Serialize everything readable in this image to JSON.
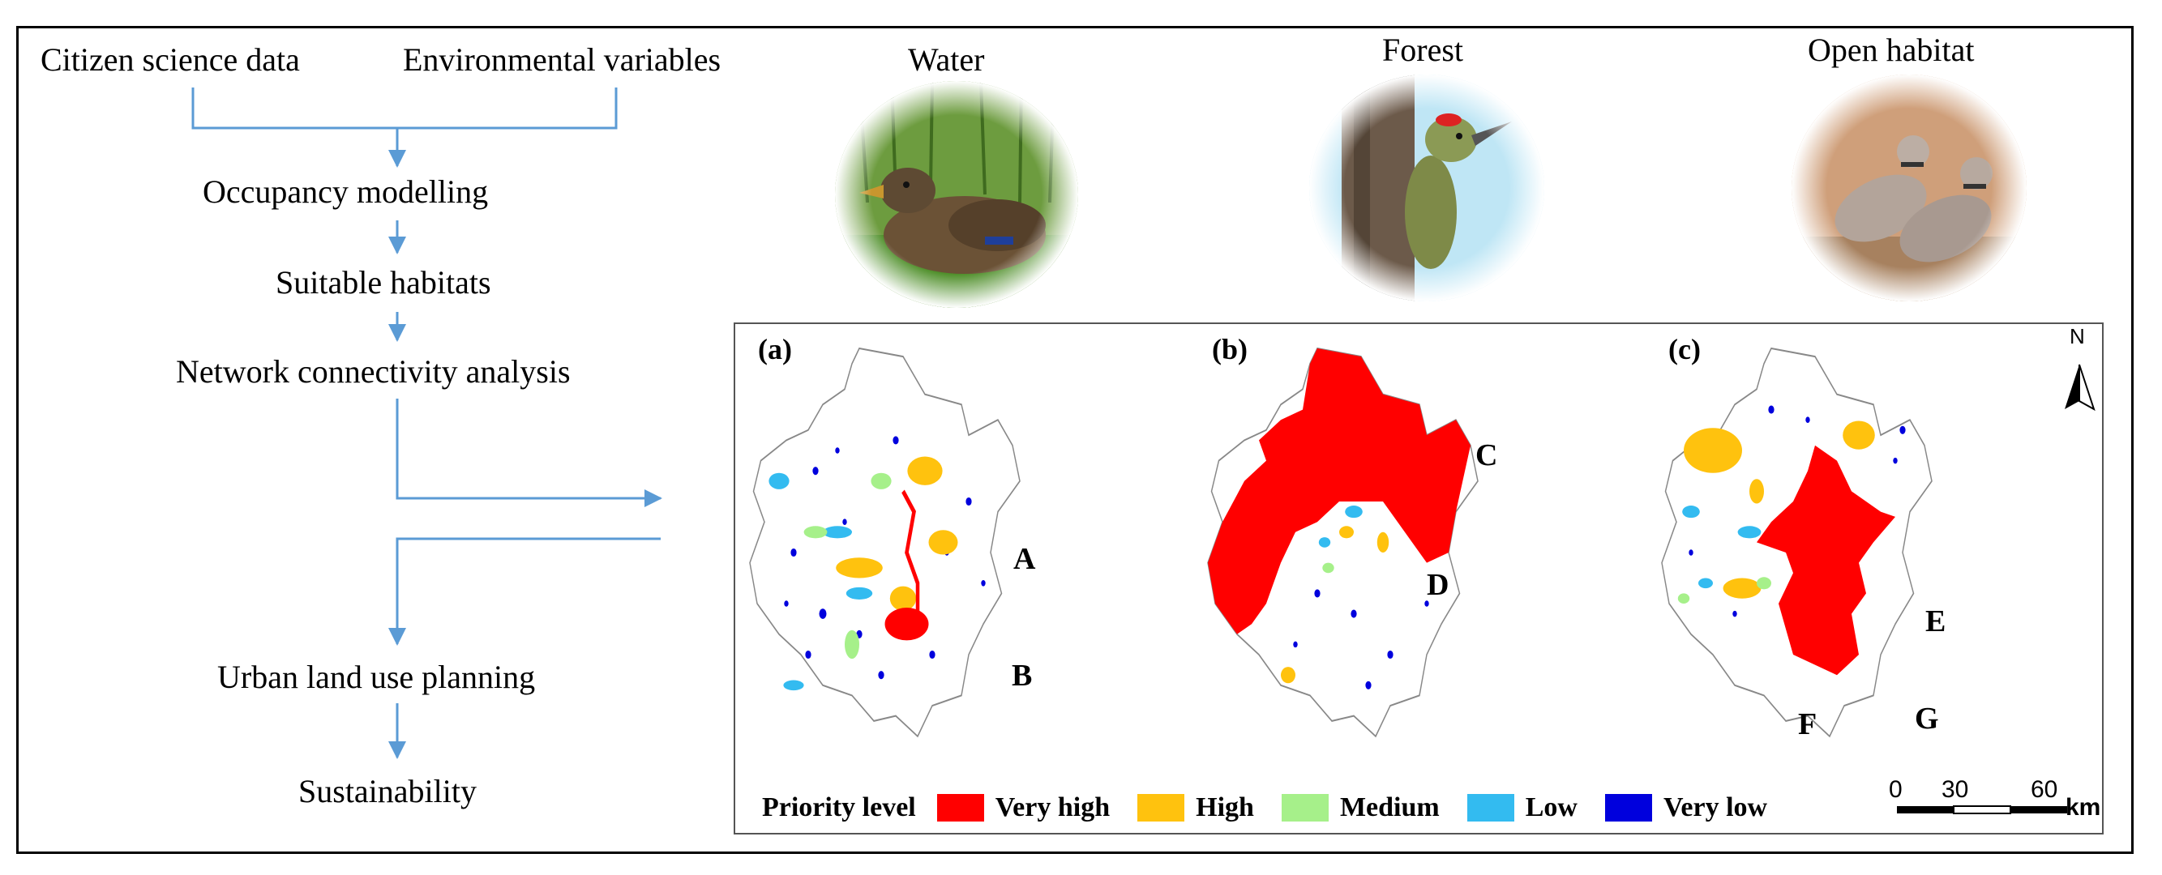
{
  "flow": {
    "source_left": "Citizen science data",
    "source_right": "Environmental variables",
    "steps": [
      "Occupancy modelling",
      "Suitable habitats",
      "Network connectivity analysis"
    ],
    "outcomes": [
      "Urban land use planning",
      "Sustainability"
    ]
  },
  "photos": [
    {
      "label": "Water",
      "icon": "duck-photo"
    },
    {
      "label": "Forest",
      "icon": "woodpecker-photo"
    },
    {
      "label": "Open habitat",
      "icon": "dove-photo"
    }
  ],
  "maps": [
    {
      "tag": "(a)",
      "letters": [
        "A",
        "B"
      ]
    },
    {
      "tag": "(b)",
      "letters": [
        "C",
        "D"
      ]
    },
    {
      "tag": "(c)",
      "letters": [
        "E",
        "F",
        "G"
      ]
    }
  ],
  "legend": {
    "title": "Priority level",
    "items": [
      {
        "label": "Very high",
        "color": "#ff0000"
      },
      {
        "label": "High",
        "color": "#ffc20e"
      },
      {
        "label": "Medium",
        "color": "#a6f08a"
      },
      {
        "label": "Low",
        "color": "#33bbf0"
      },
      {
        "label": "Very low",
        "color": "#0000dd"
      }
    ]
  },
  "scale": {
    "ticks": [
      "0",
      "30",
      "60"
    ],
    "unit": "km"
  },
  "north": {
    "label": "N"
  },
  "colors": {
    "arrow": "#5b9bd5",
    "outline": "#888888"
  }
}
